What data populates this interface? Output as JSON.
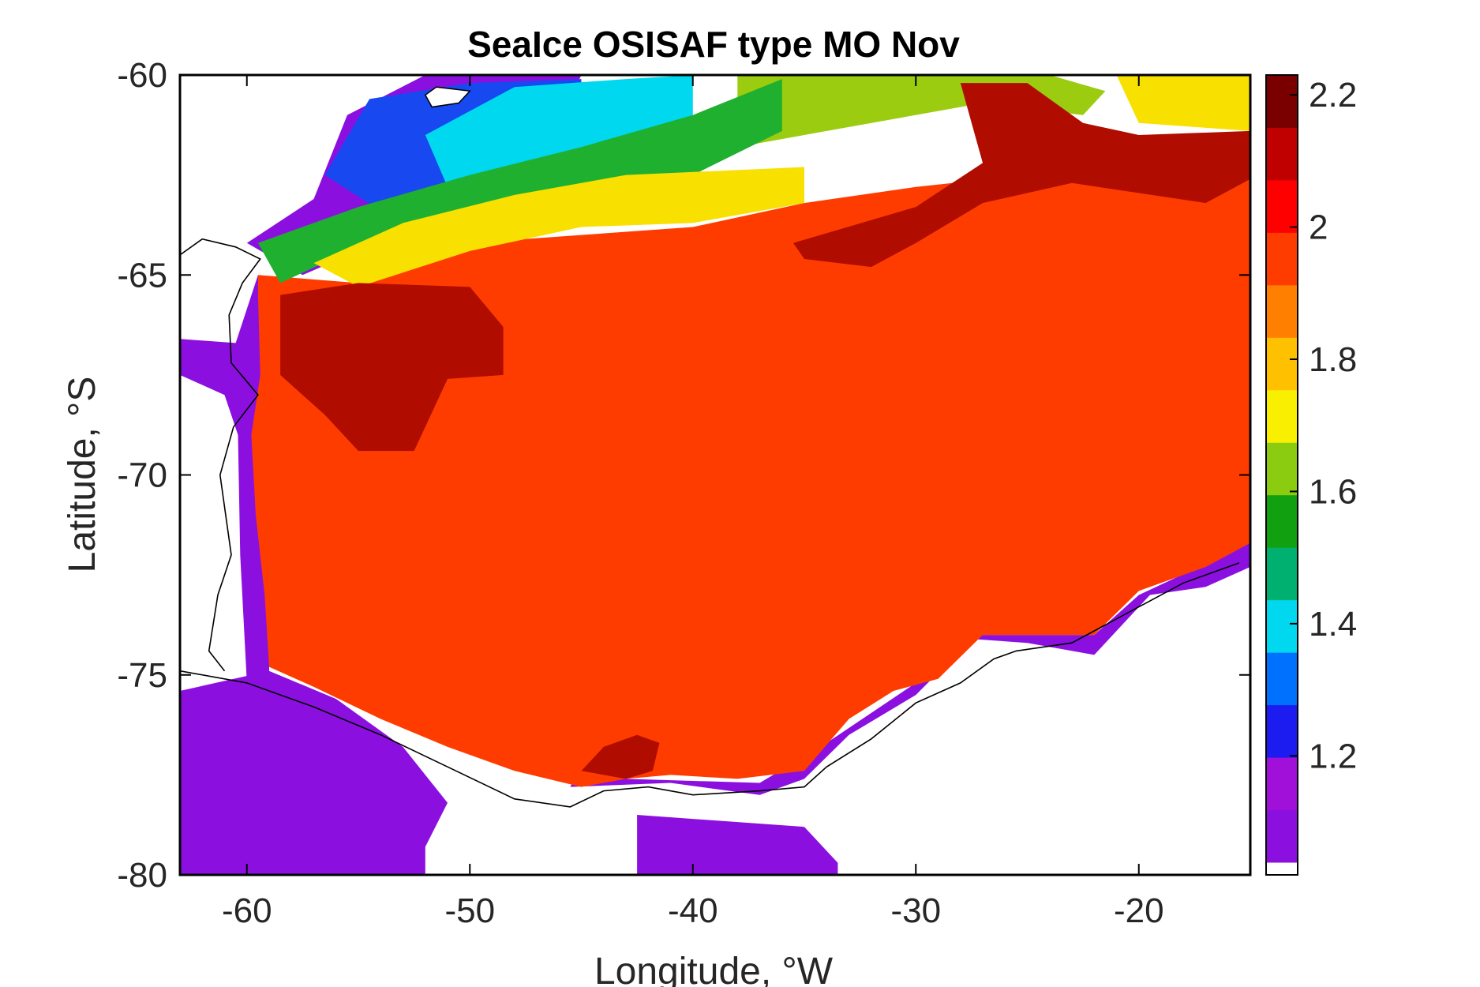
{
  "chart_data": {
    "type": "heatmap",
    "title": "SeaIce OSISAF type MO Nov",
    "xlabel": "Longitude, °W",
    "ylabel": "Latitude, °S",
    "xlim": [
      -63,
      -15
    ],
    "ylim": [
      -80,
      -60
    ],
    "xticks": [
      -60,
      -50,
      -40,
      -30,
      -20
    ],
    "yticks": [
      -60,
      -65,
      -70,
      -75,
      -80
    ],
    "colorbar": {
      "range": [
        1.02,
        2.23
      ],
      "ticks": [
        1.2,
        1.4,
        1.6,
        1.8,
        2,
        2.2
      ],
      "colormap": [
        "#ffffff",
        "#8b10e0",
        "#a010d8",
        "#1c1cf0",
        "#0070ff",
        "#00d8f0",
        "#00b070",
        "#10a010",
        "#8ccc10",
        "#f8f000",
        "#ffc000",
        "#ff8000",
        "#ff3c00",
        "#ff0000",
        "#c00000",
        "#7a0000"
      ]
    },
    "colors": {
      "dominant": "#ff3c00",
      "thick": "#b00c00",
      "margin": "#8b10e0",
      "yellow": "#f8e000",
      "green": "#20b030",
      "cyan": "#00d8f0",
      "blue": "#1848f0",
      "lime": "#9ccc10",
      "coast": "#000000"
    },
    "regions": {
      "main_ice": [
        [
          -59.5,
          -65
        ],
        [
          -55,
          -65.2
        ],
        [
          -50,
          -64.2
        ],
        [
          -45,
          -64
        ],
        [
          -40,
          -63.8
        ],
        [
          -35,
          -63.2
        ],
        [
          -30,
          -62.8
        ],
        [
          -25,
          -62.5
        ],
        [
          -20,
          -62.2
        ],
        [
          -15,
          -61.8
        ],
        [
          -15,
          -71.7
        ],
        [
          -17,
          -72.3
        ],
        [
          -20,
          -72.9
        ],
        [
          -22,
          -74
        ],
        [
          -25,
          -74
        ],
        [
          -27,
          -74
        ],
        [
          -29,
          -75.1
        ],
        [
          -31,
          -75.4
        ],
        [
          -33,
          -76.1
        ],
        [
          -35,
          -77.4
        ],
        [
          -38,
          -77.6
        ],
        [
          -41,
          -77.5
        ],
        [
          -43,
          -77.6
        ],
        [
          -45,
          -77.8
        ],
        [
          -48,
          -77.4
        ],
        [
          -51,
          -76.8
        ],
        [
          -54,
          -76.1
        ],
        [
          -57,
          -75.3
        ],
        [
          -59,
          -74.8
        ],
        [
          -59.2,
          -73
        ],
        [
          -59.6,
          -71
        ],
        [
          -59.8,
          -69
        ],
        [
          -59.4,
          -67.5
        ],
        [
          -59.5,
          -65.5
        ]
      ],
      "margin_south_west": [
        [
          -63,
          -75.4
        ],
        [
          -59,
          -74.9
        ],
        [
          -56,
          -75.6
        ],
        [
          -53,
          -76.8
        ],
        [
          -51,
          -78.2
        ],
        [
          -52,
          -79.3
        ],
        [
          -52,
          -80
        ],
        [
          -63,
          -80
        ]
      ],
      "margin_south": [
        [
          -45.5,
          -77.8
        ],
        [
          -41,
          -77.7
        ],
        [
          -37,
          -78
        ],
        [
          -35,
          -77.6
        ],
        [
          -33,
          -76.5
        ],
        [
          -30,
          -75.5
        ],
        [
          -27.5,
          -74.1
        ],
        [
          -25,
          -74.2
        ],
        [
          -22,
          -74.5
        ],
        [
          -19.5,
          -73
        ],
        [
          -17,
          -72.8
        ],
        [
          -15,
          -72.3
        ],
        [
          -15,
          -71.7
        ],
        [
          -20,
          -73
        ],
        [
          -22,
          -74
        ],
        [
          -27,
          -74
        ],
        [
          -30,
          -75.2
        ],
        [
          -34,
          -76.7
        ],
        [
          -37,
          -77.7
        ],
        [
          -43,
          -77.6
        ],
        [
          -45.3,
          -77.6
        ]
      ],
      "margin_west_strip": [
        [
          -63,
          -66.6
        ],
        [
          -60.5,
          -66.7
        ],
        [
          -59.5,
          -65
        ],
        [
          -58.5,
          -66
        ],
        [
          -58.5,
          -68
        ],
        [
          -59,
          -72
        ],
        [
          -59,
          -75
        ],
        [
          -60,
          -75.2
        ],
        [
          -60.3,
          -72
        ],
        [
          -60.4,
          -69
        ],
        [
          -61,
          -68
        ],
        [
          -63,
          -67.5
        ]
      ],
      "margin_bottom_center": [
        [
          -42.5,
          -78.5
        ],
        [
          -35,
          -78.8
        ],
        [
          -33.5,
          -79.7
        ],
        [
          -33.5,
          -80
        ],
        [
          -42.5,
          -80
        ]
      ],
      "margin_north_west": [
        [
          -60,
          -64.2
        ],
        [
          -57,
          -63.1
        ],
        [
          -55.5,
          -61
        ],
        [
          -52,
          -60
        ],
        [
          -45,
          -60
        ],
        [
          -46,
          -61.2
        ],
        [
          -48,
          -62.5
        ],
        [
          -52,
          -63.6
        ],
        [
          -55,
          -64.4
        ],
        [
          -57.5,
          -65
        ]
      ],
      "blue_band": [
        [
          -56.5,
          -62.5
        ],
        [
          -54.5,
          -60.6
        ],
        [
          -50,
          -60.2
        ],
        [
          -45,
          -60.1
        ],
        [
          -45,
          -61.2
        ],
        [
          -47,
          -62
        ],
        [
          -50,
          -62.6
        ],
        [
          -54,
          -63.4
        ]
      ],
      "cyan_band": [
        [
          -52,
          -61.5
        ],
        [
          -48,
          -60.3
        ],
        [
          -43,
          -60.1
        ],
        [
          -40,
          -60
        ],
        [
          -40,
          -61.1
        ],
        [
          -43,
          -61.7
        ],
        [
          -48,
          -62.5
        ],
        [
          -51,
          -62.8
        ]
      ],
      "green_band": [
        [
          -59.5,
          -64.2
        ],
        [
          -55,
          -63.3
        ],
        [
          -50,
          -62.5
        ],
        [
          -45,
          -61.8
        ],
        [
          -40,
          -61
        ],
        [
          -36,
          -60.1
        ],
        [
          -36,
          -61.4
        ],
        [
          -40,
          -62.5
        ],
        [
          -45,
          -63
        ],
        [
          -50,
          -63.6
        ],
        [
          -55,
          -64.3
        ],
        [
          -58.5,
          -65.2
        ]
      ],
      "yellow_band": [
        [
          -57,
          -64.7
        ],
        [
          -53,
          -63.7
        ],
        [
          -48,
          -63
        ],
        [
          -43,
          -62.5
        ],
        [
          -39,
          -62.4
        ],
        [
          -35,
          -62.3
        ],
        [
          -35,
          -63.2
        ],
        [
          -40,
          -63.7
        ],
        [
          -45,
          -63.8
        ],
        [
          -50,
          -64.4
        ],
        [
          -55,
          -65.3
        ]
      ],
      "lime_band": [
        [
          -38,
          -60
        ],
        [
          -24,
          -60
        ],
        [
          -21.5,
          -60.4
        ],
        [
          -22.5,
          -61
        ],
        [
          -27,
          -60.7
        ],
        [
          -34,
          -61.4
        ],
        [
          -38,
          -61.8
        ]
      ],
      "yellow_ne": [
        [
          -21,
          -60
        ],
        [
          -15,
          -60
        ],
        [
          -15,
          -61.4
        ],
        [
          -20,
          -61.2
        ]
      ],
      "thick_west": [
        [
          -58.5,
          -65.5
        ],
        [
          -55,
          -65.2
        ],
        [
          -50,
          -65.3
        ],
        [
          -48.5,
          -66.3
        ],
        [
          -48.5,
          -67.5
        ],
        [
          -51,
          -67.6
        ],
        [
          -52.5,
          -69.4
        ],
        [
          -55,
          -69.4
        ],
        [
          -56.5,
          -68.5
        ],
        [
          -58.5,
          -67.5
        ]
      ],
      "thick_north": [
        [
          -35.5,
          -64.2
        ],
        [
          -30,
          -63.3
        ],
        [
          -27,
          -62.2
        ],
        [
          -28,
          -60.2
        ],
        [
          -25,
          -60.2
        ],
        [
          -22.5,
          -61.2
        ],
        [
          -20,
          -61.5
        ],
        [
          -15,
          -61.4
        ],
        [
          -15,
          -62.6
        ],
        [
          -17,
          -63.2
        ],
        [
          -23,
          -62.7
        ],
        [
          -27,
          -63.2
        ],
        [
          -30,
          -64.2
        ],
        [
          -32,
          -64.8
        ],
        [
          -35,
          -64.6
        ]
      ],
      "thick_south": [
        [
          -45,
          -77.4
        ],
        [
          -44,
          -76.8
        ],
        [
          -42.5,
          -76.5
        ],
        [
          -41.5,
          -76.7
        ],
        [
          -41.8,
          -77.4
        ],
        [
          -43,
          -77.6
        ]
      ],
      "white_patches": [
        [
          [
            -52,
            -60.5
          ],
          [
            -51.5,
            -60.3
          ],
          [
            -50,
            -60.4
          ],
          [
            -50.5,
            -60.7
          ],
          [
            -51.7,
            -60.8
          ]
        ]
      ],
      "coast_line": [
        [
          -63,
          -74.9
        ],
        [
          -60,
          -75.2
        ],
        [
          -57,
          -75.8
        ],
        [
          -54,
          -76.5
        ],
        [
          -51,
          -77.3
        ],
        [
          -48,
          -78.1
        ],
        [
          -45.5,
          -78.3
        ],
        [
          -44,
          -77.9
        ],
        [
          -42,
          -77.8
        ],
        [
          -40,
          -78
        ],
        [
          -37,
          -77.9
        ],
        [
          -35,
          -77.8
        ],
        [
          -34,
          -77.3
        ],
        [
          -32,
          -76.6
        ],
        [
          -30,
          -75.7
        ],
        [
          -28,
          -75.2
        ],
        [
          -26.5,
          -74.6
        ],
        [
          -25.5,
          -74.4
        ],
        [
          -23,
          -74.2
        ],
        [
          -22,
          -73.9
        ],
        [
          -20,
          -73.3
        ],
        [
          -18,
          -72.7
        ],
        [
          -15.5,
          -72.2
        ]
      ],
      "coast_peninsula": [
        [
          -61,
          -74.9
        ],
        [
          -61.7,
          -74.4
        ],
        [
          -61.3,
          -73
        ],
        [
          -60.7,
          -72
        ],
        [
          -61.2,
          -70
        ],
        [
          -60.6,
          -68.8
        ],
        [
          -59.5,
          -68
        ],
        [
          -60.7,
          -67.2
        ],
        [
          -60.8,
          -66
        ],
        [
          -60.2,
          -65.2
        ],
        [
          -59.4,
          -64.6
        ],
        [
          -60.5,
          -64.3
        ],
        [
          -62,
          -64.1
        ],
        [
          -63,
          -64.5
        ]
      ]
    }
  }
}
